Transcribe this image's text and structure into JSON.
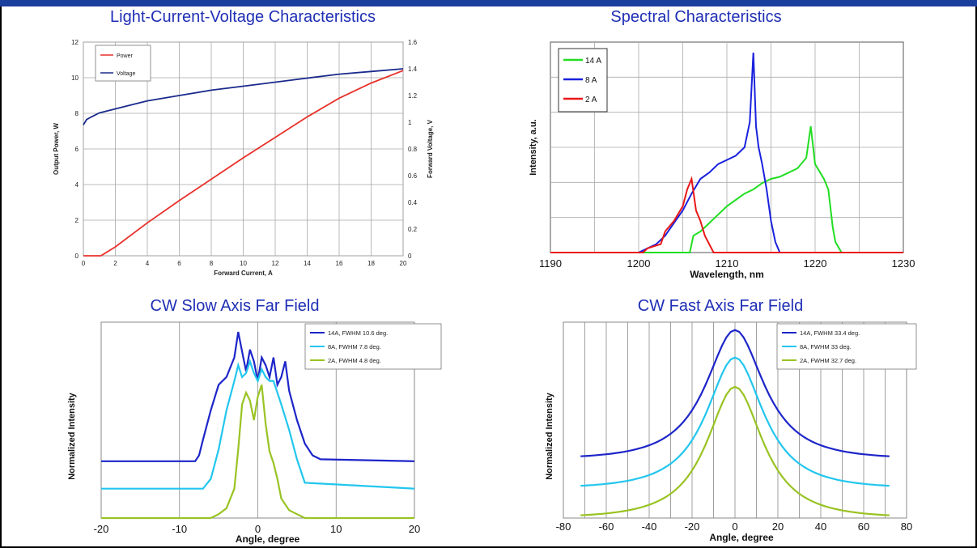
{
  "colors": {
    "header_bar": "#1b3f9e",
    "title_text": "#1f2fb5"
  },
  "charts": [
    {
      "id": "liv",
      "title": "Light-Current-Voltage Characteristics",
      "type": "line",
      "xlabel": "Forward Current, A",
      "ylabel": "Output Power, W",
      "y2label": "Forward Voltage, V",
      "xlim": [
        0,
        20
      ],
      "ylim": [
        0,
        12
      ],
      "y2lim": [
        0,
        1.6
      ],
      "xticks": [
        0,
        2,
        4,
        6,
        8,
        10,
        12,
        14,
        16,
        18,
        20
      ],
      "yticks": [
        0,
        2,
        4,
        6,
        8,
        10,
        12
      ],
      "y2ticks": [
        0,
        0.2,
        0.4,
        0.6,
        0.8,
        1,
        1.2,
        1.4,
        1.6
      ],
      "grid": true,
      "legend_position": "top-left",
      "series": [
        {
          "name": "Power",
          "color": "#e8302a",
          "axis": "left",
          "x": [
            0,
            1.1,
            2,
            4,
            6,
            8,
            10,
            12,
            14,
            16,
            18,
            20
          ],
          "y": [
            0,
            0,
            0.5,
            1.85,
            3.1,
            4.3,
            5.5,
            6.65,
            7.8,
            8.85,
            9.7,
            10.4
          ]
        },
        {
          "name": "Voltage",
          "color": "#1a2a8c",
          "axis": "right",
          "x": [
            0,
            0.1,
            0.2,
            0.5,
            1,
            2,
            4,
            6,
            8,
            10,
            12,
            14,
            16,
            18,
            20
          ],
          "y": [
            0.98,
            1.0,
            1.02,
            1.04,
            1.07,
            1.1,
            1.16,
            1.2,
            1.24,
            1.27,
            1.3,
            1.33,
            1.36,
            1.38,
            1.4
          ]
        }
      ]
    },
    {
      "id": "spectral",
      "title": "Spectral Characteristics",
      "type": "line",
      "xlabel": "Wavelength, nm",
      "ylabel": "Intensity, a.u.",
      "xlim": [
        1190,
        1230
      ],
      "ylim": [
        0,
        1
      ],
      "xticks": [
        1190,
        1200,
        1210,
        1220,
        1230
      ],
      "grid": true,
      "legend_position": "top-left",
      "series": [
        {
          "name": "14 A",
          "color": "#22dd22",
          "x": [
            1190,
            1205.8,
            1206.2,
            1207,
            1208,
            1209,
            1210,
            1211,
            1212,
            1213,
            1214,
            1215,
            1216,
            1217,
            1218,
            1219,
            1219.5,
            1220,
            1221,
            1221.5,
            1222,
            1222.3,
            1223,
            1230
          ],
          "y": [
            0,
            0,
            0.08,
            0.1,
            0.14,
            0.18,
            0.22,
            0.25,
            0.28,
            0.3,
            0.33,
            0.35,
            0.36,
            0.38,
            0.4,
            0.45,
            0.6,
            0.42,
            0.35,
            0.3,
            0.12,
            0.05,
            0,
            0
          ]
        },
        {
          "name": "8 A",
          "color": "#1a22dd",
          "x": [
            1190,
            1200,
            1201,
            1202,
            1203,
            1204,
            1205,
            1206,
            1207,
            1208,
            1209,
            1210,
            1211,
            1212,
            1212.6,
            1213,
            1213.3,
            1213.6,
            1214,
            1214.5,
            1215,
            1215.5,
            1216,
            1230
          ],
          "y": [
            0,
            0,
            0.02,
            0.04,
            0.08,
            0.14,
            0.2,
            0.28,
            0.35,
            0.38,
            0.42,
            0.44,
            0.46,
            0.5,
            0.62,
            0.95,
            0.6,
            0.5,
            0.42,
            0.3,
            0.15,
            0.05,
            0,
            0
          ]
        },
        {
          "name": "2 A",
          "color": "#e81818",
          "x": [
            1190,
            1200.5,
            1201,
            1202.5,
            1203,
            1204,
            1205,
            1205.5,
            1206,
            1206.5,
            1207,
            1207.5,
            1208.5,
            1230
          ],
          "y": [
            0,
            0,
            0.02,
            0.04,
            0.1,
            0.15,
            0.22,
            0.3,
            0.35,
            0.2,
            0.15,
            0.08,
            0,
            0
          ]
        }
      ]
    },
    {
      "id": "slow",
      "title": "CW Slow Axis Far Field",
      "type": "line",
      "xlabel": "Angle, degree",
      "ylabel": "Normalized Intensity",
      "xlim": [
        -20,
        20
      ],
      "ylim": [
        0,
        1
      ],
      "xticks": [
        -20,
        -10,
        0,
        10,
        20
      ],
      "grid": true,
      "legend_position": "top-right",
      "series": [
        {
          "name": "14A, FWHM 10.6 deg.",
          "color": "#1d25c9",
          "x": [
            -20,
            -8,
            -7.5,
            -7,
            -6,
            -5,
            -4,
            -3,
            -2.5,
            -2,
            -1.5,
            -1,
            -0.5,
            0,
            0.5,
            1,
            1.5,
            2,
            2.5,
            3,
            3.5,
            4,
            5,
            6,
            7,
            8,
            20
          ],
          "y": [
            0.29,
            0.29,
            0.32,
            0.4,
            0.55,
            0.68,
            0.72,
            0.82,
            0.95,
            0.85,
            0.75,
            0.86,
            0.8,
            0.7,
            0.82,
            0.78,
            0.72,
            0.82,
            0.68,
            0.72,
            0.8,
            0.65,
            0.5,
            0.38,
            0.32,
            0.3,
            0.29
          ]
        },
        {
          "name": "8A, FWHM 7.8 deg.",
          "color": "#22c6ee",
          "x": [
            -20,
            -7,
            -6,
            -5,
            -4,
            -3,
            -2.5,
            -2,
            -1.5,
            -1,
            -0.5,
            0,
            0.5,
            1,
            1.5,
            2,
            3,
            4,
            5,
            6,
            20
          ],
          "y": [
            0.15,
            0.15,
            0.2,
            0.35,
            0.55,
            0.7,
            0.78,
            0.72,
            0.74,
            0.8,
            0.74,
            0.7,
            0.76,
            0.72,
            0.7,
            0.7,
            0.58,
            0.45,
            0.3,
            0.18,
            0.15
          ]
        },
        {
          "name": "2A, FWHM 4.8 deg.",
          "color": "#99c323",
          "x": [
            -20,
            -6,
            -5,
            -4,
            -3,
            -2.5,
            -2,
            -1.5,
            -1,
            -0.5,
            0,
            0.5,
            1,
            1.5,
            2,
            2.5,
            3,
            4,
            5,
            6,
            20
          ],
          "y": [
            0,
            0,
            0.02,
            0.05,
            0.15,
            0.35,
            0.58,
            0.64,
            0.6,
            0.5,
            0.62,
            0.68,
            0.48,
            0.34,
            0.28,
            0.2,
            0.1,
            0.04,
            0.02,
            0,
            0
          ]
        }
      ]
    },
    {
      "id": "fast",
      "title": "CW Fast Axis Far Field",
      "type": "line",
      "xlabel": "Angle, degree",
      "ylabel": "Normalized Intensity",
      "xlim": [
        -80,
        80
      ],
      "ylim": [
        0,
        1
      ],
      "xticks": [
        -80,
        -60,
        -40,
        -20,
        0,
        20,
        40,
        60,
        80
      ],
      "grid": true,
      "legend_position": "top-right",
      "series": [
        {
          "name": "14A, FWHM 33.4 deg.",
          "color": "#1d25c9",
          "base": 0.3,
          "peak": 0.96,
          "sigma": 15.5
        },
        {
          "name": "8A, FWHM 33 deg.",
          "color": "#22c6ee",
          "base": 0.15,
          "peak": 0.82,
          "sigma": 15.2
        },
        {
          "name": "2A, FWHM 32.7 deg.",
          "color": "#99c323",
          "base": 0.0,
          "peak": 0.67,
          "sigma": 15.0
        }
      ]
    }
  ]
}
